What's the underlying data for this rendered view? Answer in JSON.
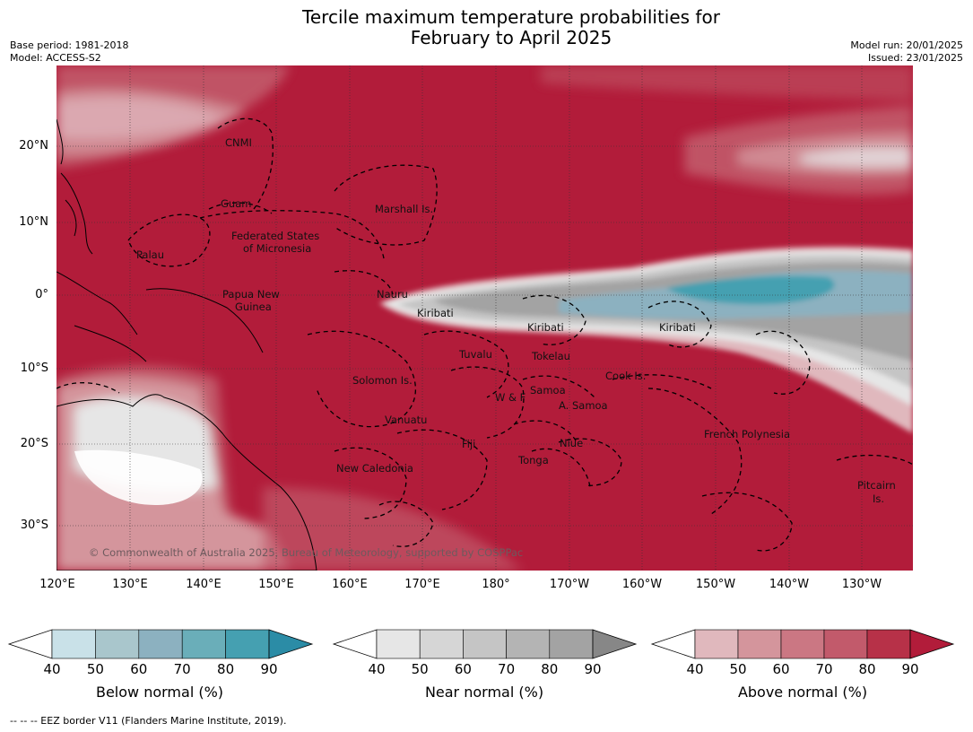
{
  "title_line1": "Tercile maximum temperature probabilities for",
  "title_line2": "February to April 2025",
  "meta": {
    "base_period": "Base period: 1981-2018",
    "model": "Model: ACCESS-S2",
    "model_run": "Model run: 20/01/2025",
    "issued": "Issued: 23/01/2025"
  },
  "map": {
    "lat_labels": [
      "20°N",
      "10°N",
      "0°",
      "10°S",
      "20°S",
      "30°S"
    ],
    "lon_labels": [
      "120°E",
      "130°E",
      "140°E",
      "150°E",
      "160°E",
      "170°E",
      "180°",
      "170°W",
      "160°W",
      "150°W",
      "140°W",
      "130°W"
    ],
    "copyright": "© Commonwealth of Australia 2025, Bureau of Meteorology, supported by COSPPac",
    "regions": [
      "CNMI",
      "Guam",
      "Marshall Is.",
      "Federated States",
      "of Micronesia",
      "Palau",
      "Papua New",
      "Guinea",
      "Nauru",
      "Kiribati",
      "Kiribati",
      "Kiribati",
      "Tuvalu",
      "Tokelau",
      "Cook Is.",
      "Solomon Is.",
      "W & F",
      "Samoa",
      "A. Samoa",
      "Vanuatu",
      "Fiji",
      "Niue",
      "Tonga",
      "French Polynesia",
      "New Caledonia",
      "Pitcairn",
      "Is."
    ],
    "colors": {
      "above_90": "#b21c3a",
      "near_80": "#a3a3a3",
      "below_70": "#6aaeb9",
      "land_white": "#ffffff"
    }
  },
  "colorbars": [
    {
      "label": "Below normal (%)",
      "ticks": [
        "40",
        "50",
        "60",
        "70",
        "80",
        "90"
      ],
      "colors": [
        "#ffffff",
        "#c9e1e8",
        "#a9c6cc",
        "#8cb1c0",
        "#6aaeb9",
        "#45a0b1",
        "#2b8ca6"
      ]
    },
    {
      "label": "Near normal (%)",
      "ticks": [
        "40",
        "50",
        "60",
        "70",
        "80",
        "90"
      ],
      "colors": [
        "#ffffff",
        "#e6e6e6",
        "#d6d6d6",
        "#c5c5c5",
        "#b4b4b4",
        "#a3a3a3",
        "#878787"
      ]
    },
    {
      "label": "Above normal (%)",
      "ticks": [
        "40",
        "50",
        "60",
        "70",
        "80",
        "90"
      ],
      "colors": [
        "#ffffff",
        "#e0b8bd",
        "#d4959c",
        "#cb7783",
        "#c25a6b",
        "#b73148",
        "#b21c3a"
      ]
    }
  ],
  "footnote": "--  --  -- EEZ border V11 (Flanders Marine Institute, 2019)."
}
